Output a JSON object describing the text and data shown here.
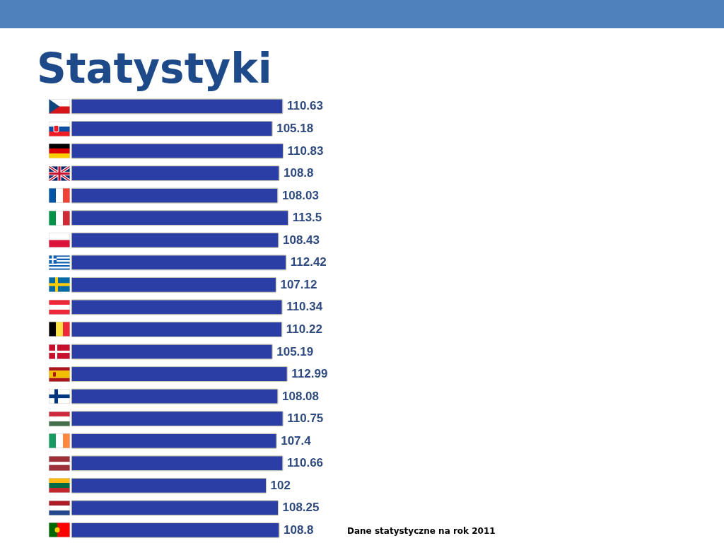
{
  "chart_data": {
    "type": "bar",
    "orientation": "horizontal",
    "title": "Statystyki",
    "categories": [
      null,
      null,
      null,
      null,
      null,
      null,
      null,
      null,
      null,
      null,
      null,
      null,
      null,
      null,
      null,
      null,
      null,
      null,
      null,
      null
    ],
    "values": [
      110.63,
      105.18,
      110.83,
      108.8,
      108.03,
      113.5,
      108.43,
      112.42,
      107.12,
      110.34,
      110.22,
      105.19,
      112.99,
      108.08,
      110.75,
      107.4,
      110.66,
      102,
      108.25,
      108.8
    ],
    "color": "#2a3ea6",
    "data_labels": true,
    "annotations": [
      "Dane statystyczne na rok 2011"
    ]
  }
}
